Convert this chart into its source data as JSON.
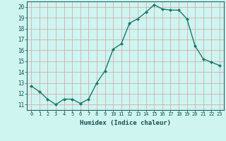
{
  "x": [
    0,
    1,
    2,
    3,
    4,
    5,
    6,
    7,
    8,
    9,
    10,
    11,
    12,
    13,
    14,
    15,
    16,
    17,
    18,
    19,
    20,
    21,
    22,
    23
  ],
  "y": [
    12.7,
    12.2,
    11.5,
    11.0,
    11.5,
    11.5,
    11.1,
    11.5,
    13.0,
    14.1,
    16.1,
    16.6,
    18.5,
    18.9,
    19.5,
    20.2,
    19.8,
    19.7,
    19.7,
    18.9,
    16.4,
    15.2,
    14.9,
    14.6
  ],
  "line_color": "#1a7a6e",
  "marker": "D",
  "marker_size": 2.0,
  "bg_color": "#cef5f0",
  "grid_color": "#d4a0a0",
  "xlabel": "Humidex (Indice chaleur)",
  "ylabel_ticks": [
    11,
    12,
    13,
    14,
    15,
    16,
    17,
    18,
    19,
    20
  ],
  "xlim": [
    -0.5,
    23.5
  ],
  "ylim": [
    10.5,
    20.5
  ],
  "xtick_fontsize": 5.0,
  "ytick_fontsize": 5.5,
  "xlabel_fontsize": 6.5
}
